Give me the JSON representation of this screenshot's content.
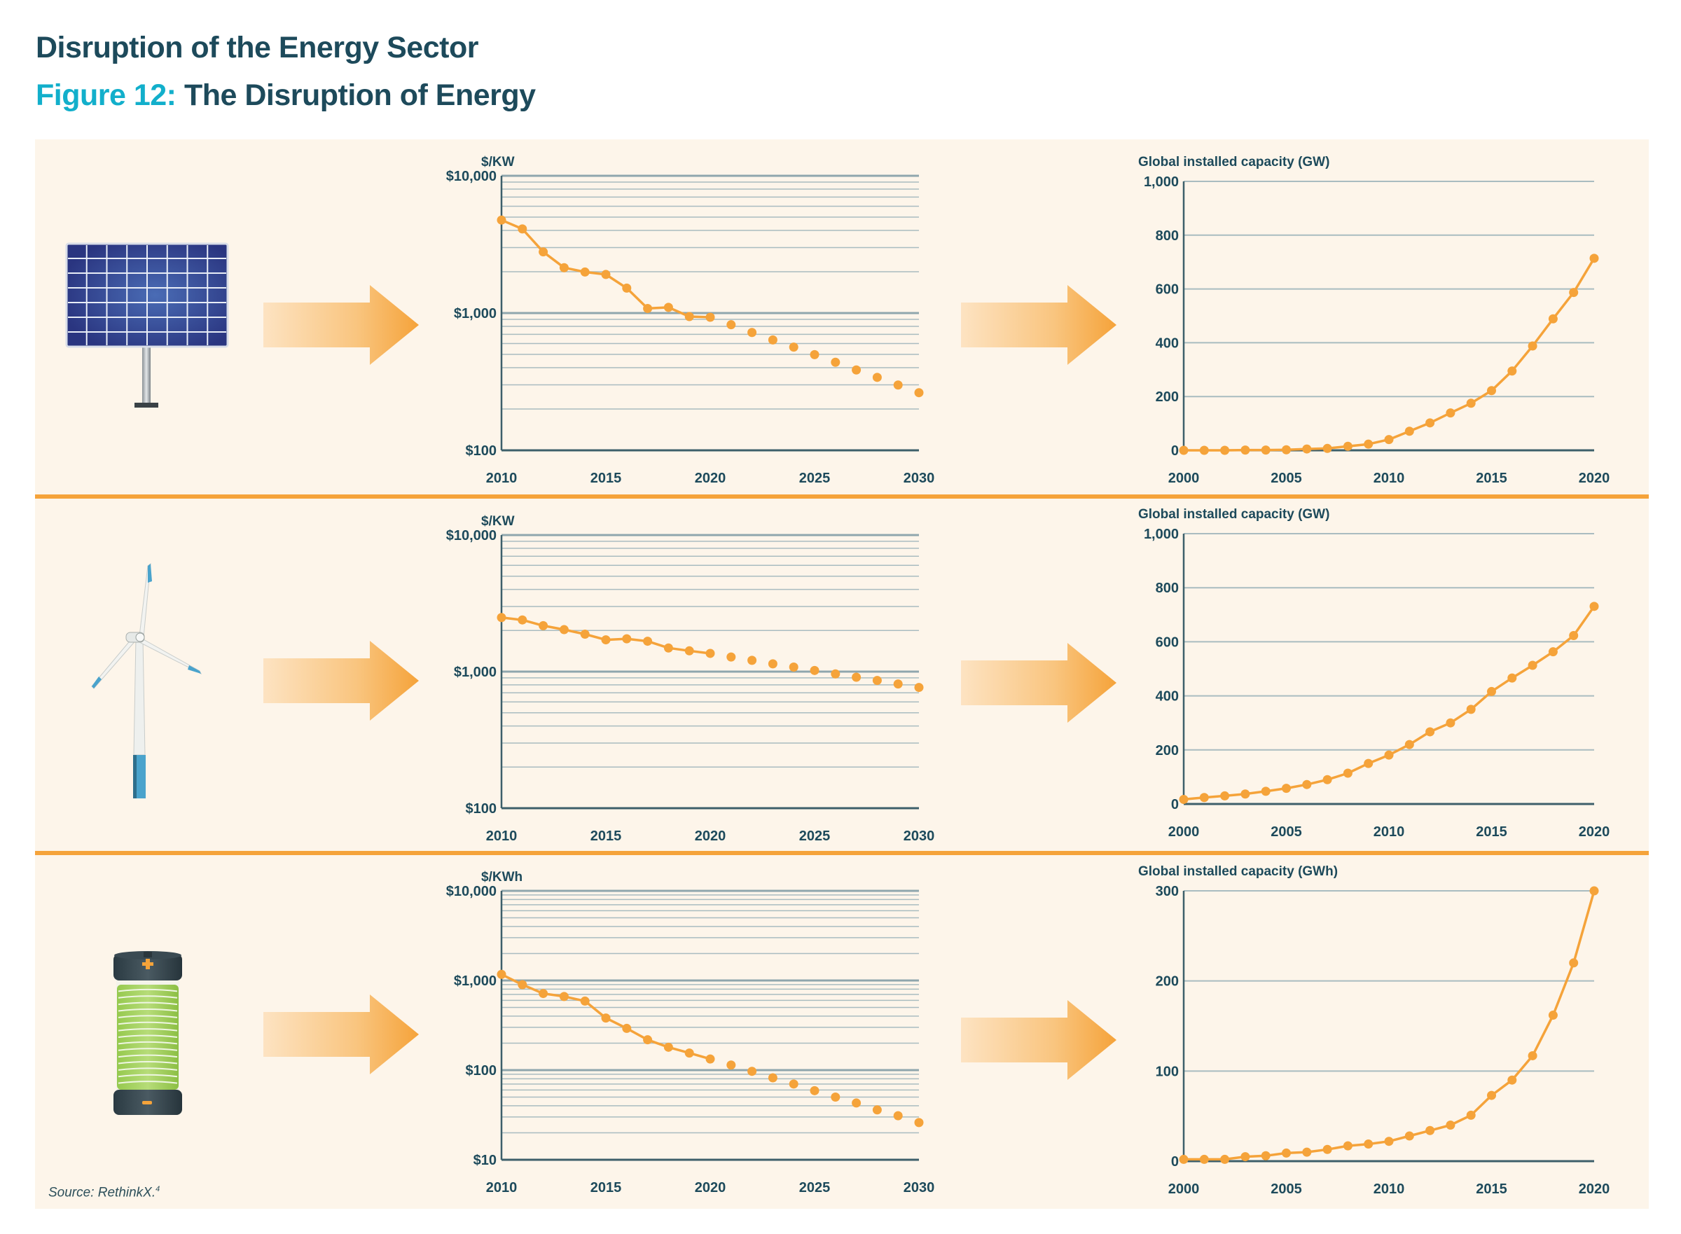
{
  "header": {
    "section_title": "Disruption of the Energy Sector",
    "figure_label": "Figure 12:",
    "figure_title": "The Disruption of Energy"
  },
  "source": {
    "text": "Source: RethinkX.",
    "footnote": "4"
  },
  "colors": {
    "accent": "#f5a33a",
    "title": "#1d4a5b",
    "figure_label": "#12afcb",
    "panel_bg": "#fdf5ea",
    "grid": "#a9bcc0"
  },
  "rows": [
    {
      "icon": "solar-panel-icon"
    },
    {
      "icon": "wind-turbine-icon"
    },
    {
      "icon": "battery-icon"
    }
  ],
  "chart_data": [
    {
      "type": "line",
      "row": "solar",
      "ylabel": "$/KW",
      "yscale": "log",
      "ylim": [
        100,
        10000
      ],
      "xlim": [
        2010,
        2030
      ],
      "yticks": [
        {
          "v": 10000,
          "label": "$10,000"
        },
        {
          "v": 1000,
          "label": "$1,000"
        },
        {
          "v": 100,
          "label": "$100"
        }
      ],
      "xticks": [
        "2010",
        "2015",
        "2020",
        "2025",
        "2030"
      ],
      "grid": true,
      "connected_until_year": 2020,
      "x": [
        2010,
        2011,
        2012,
        2013,
        2014,
        2015,
        2016,
        2017,
        2018,
        2019,
        2020,
        2021,
        2022,
        2023,
        2024,
        2025,
        2026,
        2027,
        2028,
        2029,
        2030
      ],
      "y": [
        4760,
        4100,
        2790,
        2140,
        1990,
        1910,
        1520,
        1080,
        1100,
        943,
        932,
        822,
        722,
        637,
        565,
        498,
        438,
        385,
        340,
        299,
        263
      ]
    },
    {
      "type": "line",
      "row": "solar",
      "ylabel": "Global installed capacity (GW)",
      "yscale": "linear",
      "ylim": [
        0,
        1000
      ],
      "xlim": [
        2000,
        2020
      ],
      "yticks": [
        {
          "v": 0,
          "label": "0"
        },
        {
          "v": 200,
          "label": "200"
        },
        {
          "v": 400,
          "label": "400"
        },
        {
          "v": 600,
          "label": "600"
        },
        {
          "v": 800,
          "label": "800"
        },
        {
          "v": 1000,
          "label": "1,000"
        }
      ],
      "xticks": [
        "2000",
        "2005",
        "2010",
        "2015",
        "2020"
      ],
      "grid": true,
      "connected_until_year": 2020,
      "x": [
        2000,
        2001,
        2002,
        2003,
        2004,
        2005,
        2006,
        2007,
        2008,
        2009,
        2010,
        2011,
        2012,
        2013,
        2014,
        2015,
        2016,
        2017,
        2018,
        2019,
        2020
      ],
      "y": [
        0,
        0,
        0,
        1,
        1,
        2,
        5,
        7,
        15,
        23,
        40,
        71,
        102,
        139,
        175,
        222,
        295,
        388,
        489,
        587,
        714
      ]
    },
    {
      "type": "line",
      "row": "wind",
      "ylabel": "$/KW",
      "yscale": "log",
      "ylim": [
        100,
        10000
      ],
      "xlim": [
        2010,
        2030
      ],
      "yticks": [
        {
          "v": 10000,
          "label": "$10,000"
        },
        {
          "v": 1000,
          "label": "$1,000"
        },
        {
          "v": 100,
          "label": "$100"
        }
      ],
      "xticks": [
        "2010",
        "2015",
        "2020",
        "2025",
        "2030"
      ],
      "grid": true,
      "connected_until_year": 2020,
      "x": [
        2010,
        2011,
        2012,
        2013,
        2014,
        2015,
        2016,
        2017,
        2018,
        2019,
        2020,
        2021,
        2022,
        2023,
        2024,
        2025,
        2026,
        2027,
        2028,
        2029,
        2030
      ],
      "y": [
        2490,
        2390,
        2170,
        2030,
        1880,
        1710,
        1740,
        1670,
        1490,
        1420,
        1360,
        1280,
        1210,
        1140,
        1080,
        1020,
        962,
        910,
        862,
        812,
        766
      ]
    },
    {
      "type": "line",
      "row": "wind",
      "ylabel": "Global installed capacity (GW)",
      "yscale": "linear",
      "ylim": [
        0,
        1000
      ],
      "xlim": [
        2000,
        2020
      ],
      "yticks": [
        {
          "v": 0,
          "label": "0"
        },
        {
          "v": 200,
          "label": "200"
        },
        {
          "v": 400,
          "label": "400"
        },
        {
          "v": 600,
          "label": "600"
        },
        {
          "v": 800,
          "label": "800"
        },
        {
          "v": 1000,
          "label": "1,000"
        }
      ],
      "xticks": [
        "2000",
        "2005",
        "2010",
        "2015",
        "2020"
      ],
      "grid": true,
      "connected_until_year": 2020,
      "x": [
        2000,
        2001,
        2002,
        2003,
        2004,
        2005,
        2006,
        2007,
        2008,
        2009,
        2010,
        2011,
        2012,
        2013,
        2014,
        2015,
        2016,
        2017,
        2018,
        2019,
        2020
      ],
      "y": [
        17,
        24,
        30,
        37,
        47,
        58,
        72,
        90,
        114,
        150,
        181,
        220,
        267,
        300,
        350,
        416,
        466,
        513,
        563,
        623,
        731
      ]
    },
    {
      "type": "line",
      "row": "battery",
      "ylabel": "$/KWh",
      "yscale": "log",
      "ylim": [
        10,
        10000
      ],
      "xlim": [
        2010,
        2030
      ],
      "yticks": [
        {
          "v": 10000,
          "label": "$10,000"
        },
        {
          "v": 1000,
          "label": "$1,000"
        },
        {
          "v": 100,
          "label": "$100"
        },
        {
          "v": 10,
          "label": "$10"
        }
      ],
      "xticks": [
        "2010",
        "2015",
        "2020",
        "2025",
        "2030"
      ],
      "grid": true,
      "connected_until_year": 2020,
      "x": [
        2010,
        2011,
        2012,
        2013,
        2014,
        2015,
        2016,
        2017,
        2018,
        2019,
        2020,
        2021,
        2022,
        2023,
        2024,
        2025,
        2026,
        2027,
        2028,
        2029,
        2030
      ],
      "y": [
        1170,
        898,
        716,
        663,
        589,
        381,
        292,
        218,
        180,
        155,
        133,
        114,
        97,
        82,
        70,
        59,
        50,
        43,
        36,
        31,
        26
      ]
    },
    {
      "type": "line",
      "row": "battery",
      "ylabel": "Global installed capacity (GWh)",
      "yscale": "linear",
      "ylim": [
        0,
        300
      ],
      "xlim": [
        2000,
        2020
      ],
      "yticks": [
        {
          "v": 0,
          "label": "0"
        },
        {
          "v": 100,
          "label": "100"
        },
        {
          "v": 200,
          "label": "200"
        },
        {
          "v": 300,
          "label": "300"
        }
      ],
      "xticks": [
        "2000",
        "2005",
        "2010",
        "2015",
        "2020"
      ],
      "grid": true,
      "connected_until_year": 2020,
      "x": [
        2000,
        2001,
        2002,
        2003,
        2004,
        2005,
        2006,
        2007,
        2008,
        2009,
        2010,
        2011,
        2012,
        2013,
        2014,
        2015,
        2016,
        2017,
        2018,
        2019,
        2020
      ],
      "y": [
        2,
        2,
        2,
        5,
        6,
        9,
        10,
        13,
        17,
        19,
        22,
        28,
        34,
        40,
        51,
        73,
        90,
        117,
        162,
        220,
        300
      ]
    }
  ]
}
